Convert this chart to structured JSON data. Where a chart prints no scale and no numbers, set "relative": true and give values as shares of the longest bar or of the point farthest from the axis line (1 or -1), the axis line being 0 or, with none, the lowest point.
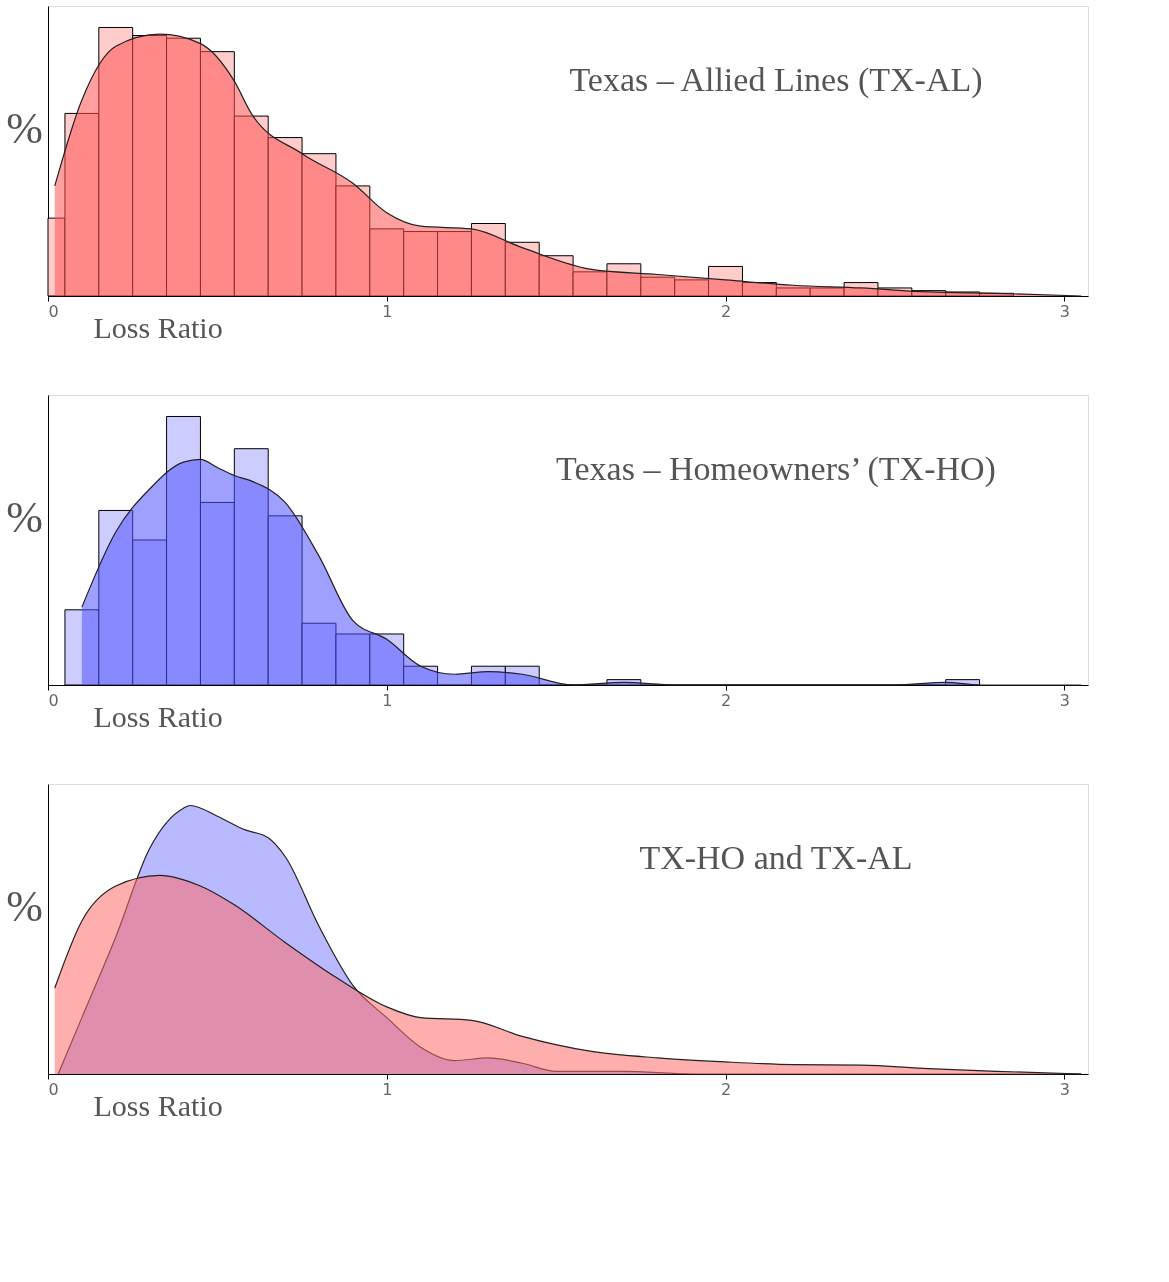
{
  "chart_data": [
    {
      "type": "histogram",
      "title": "Texas – Allied Lines (TX-AL)",
      "xlabel": "Loss Ratio",
      "ylabel": "%",
      "relative": true,
      "xlim": [
        0,
        3.07
      ],
      "xticks": [
        0,
        1,
        2,
        3
      ],
      "grid": false,
      "bins": [
        0,
        0.05,
        0.15,
        0.25,
        0.35,
        0.45,
        0.55,
        0.65,
        0.75,
        0.85,
        0.95,
        1.05,
        1.15,
        1.25,
        1.35,
        1.45,
        1.55,
        1.65,
        1.75,
        1.85,
        1.95,
        2.05,
        2.15,
        2.25,
        2.35,
        2.45,
        2.55,
        2.65,
        2.75,
        2.85
      ],
      "series": [
        {
          "color": "#ffcccc",
          "values": [
            0.29,
            0.68,
            1.0,
            0.97,
            0.96,
            0.91,
            0.67,
            0.59,
            0.53,
            0.41,
            0.25,
            0.24,
            0.24,
            0.27,
            0.2,
            0.15,
            0.09,
            0.12,
            0.07,
            0.06,
            0.11,
            0.05,
            0.03,
            0.03,
            0.05,
            0.03,
            0.02,
            0.015,
            0.01
          ]
        },
        {
          "type": "area",
          "color": "#ff5050",
          "x": [
            0.02,
            0.1,
            0.2,
            0.33,
            0.45,
            0.55,
            0.6,
            0.75,
            0.9,
            1.0,
            1.1,
            1.25,
            1.4,
            1.6,
            1.8,
            2.0,
            2.2,
            2.4,
            2.6,
            2.8,
            3.05
          ],
          "values": [
            0.41,
            0.73,
            0.93,
            0.975,
            0.94,
            0.8,
            0.68,
            0.53,
            0.42,
            0.31,
            0.26,
            0.25,
            0.18,
            0.1,
            0.08,
            0.06,
            0.04,
            0.03,
            0.015,
            0.01,
            0
          ]
        }
      ]
    },
    {
      "type": "histogram",
      "title": "Texas – Homeowners’ (TX-HO)",
      "xlabel": "Loss Ratio",
      "ylabel": "%",
      "relative": true,
      "xlim": [
        0,
        3.07
      ],
      "xticks": [
        0,
        1,
        2,
        3
      ],
      "grid": false,
      "bins": [
        0.05,
        0.15,
        0.25,
        0.35,
        0.45,
        0.55,
        0.65,
        0.75,
        0.85,
        0.95,
        1.05,
        1.15,
        1.25,
        1.35,
        1.45,
        1.55,
        1.65,
        1.75,
        1.85,
        1.95,
        2.05,
        2.15,
        2.25,
        2.35,
        2.45,
        2.55,
        2.65,
        2.75
      ],
      "series": [
        {
          "color": "#ccccff",
          "values": [
            0.28,
            0.65,
            0.54,
            1.0,
            0.68,
            0.88,
            0.63,
            0.23,
            0.19,
            0.19,
            0.07,
            0,
            0.07,
            0.07,
            0,
            0,
            0.02,
            0,
            0,
            0,
            0,
            0,
            0,
            0,
            0,
            0,
            0.02
          ]
        },
        {
          "type": "area",
          "color": "#5050ff",
          "x": [
            0.1,
            0.2,
            0.3,
            0.4,
            0.45,
            0.5,
            0.55,
            0.6,
            0.7,
            0.8,
            0.9,
            1.0,
            1.1,
            1.2,
            1.3,
            1.4,
            1.55,
            1.7,
            1.85,
            2.5,
            2.65,
            2.75,
            3.05
          ],
          "values": [
            0.29,
            0.57,
            0.73,
            0.83,
            0.84,
            0.81,
            0.78,
            0.76,
            0.68,
            0.48,
            0.24,
            0.17,
            0.07,
            0.04,
            0.05,
            0.04,
            0,
            0.01,
            0,
            0,
            0.01,
            0,
            0
          ]
        }
      ]
    },
    {
      "type": "area",
      "title": "TX-HO and TX-AL",
      "xlabel": "Loss Ratio",
      "ylabel": "%",
      "relative": true,
      "xlim": [
        0,
        3.07
      ],
      "xticks": [
        0,
        1,
        2,
        3
      ],
      "grid": false,
      "series": [
        {
          "color": "#8080ff",
          "x": [
            0.03,
            0.1,
            0.2,
            0.3,
            0.4,
            0.42,
            0.5,
            0.58,
            0.65,
            0.7,
            0.8,
            0.9,
            1.0,
            1.1,
            1.2,
            1.3,
            1.4,
            1.5,
            1.7,
            1.9,
            3.05
          ],
          "values": [
            0,
            0.21,
            0.51,
            0.84,
            0.99,
            1.0,
            0.96,
            0.91,
            0.88,
            0.81,
            0.55,
            0.33,
            0.21,
            0.1,
            0.05,
            0.06,
            0.04,
            0.01,
            0.01,
            0,
            0
          ]
        },
        {
          "color": "#ff6b6b",
          "x": [
            0.02,
            0.1,
            0.2,
            0.33,
            0.45,
            0.55,
            0.7,
            0.85,
            1.0,
            1.1,
            1.25,
            1.4,
            1.6,
            1.8,
            2.0,
            2.2,
            2.4,
            2.6,
            2.8,
            3.05
          ],
          "values": [
            0.32,
            0.57,
            0.7,
            0.74,
            0.7,
            0.63,
            0.49,
            0.36,
            0.25,
            0.21,
            0.2,
            0.14,
            0.085,
            0.06,
            0.045,
            0.035,
            0.033,
            0.02,
            0.01,
            0
          ]
        }
      ]
    }
  ]
}
